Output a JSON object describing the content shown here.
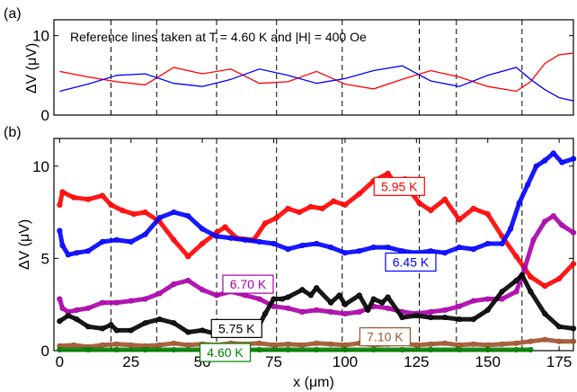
{
  "chart_data": [
    {
      "panel_label": "(a)",
      "type": "line",
      "ylabel": "ΔV (μV)",
      "annotation": "Reference lines taken at T = 4.60 K and |H| = 400 Oe",
      "xlim": [
        -2,
        180
      ],
      "ylim": [
        0,
        12
      ],
      "yticks": [
        0,
        10
      ],
      "dashed_x": [
        18,
        34,
        55,
        76,
        99,
        126,
        139,
        162
      ],
      "series": [
        {
          "color": "#ff0000",
          "x": [
            0,
            10,
            20,
            30,
            40,
            50,
            60,
            70,
            80,
            90,
            100,
            110,
            120,
            130,
            140,
            150,
            160,
            165,
            170,
            175,
            180
          ],
          "values": [
            5.5,
            4.8,
            4.2,
            3.8,
            6.0,
            5.2,
            5.8,
            4.0,
            4.2,
            5.5,
            3.9,
            3.3,
            4.5,
            5.6,
            4.8,
            3.6,
            3.0,
            4.2,
            6.5,
            7.6,
            7.8
          ]
        },
        {
          "color": "#0000ff",
          "x": [
            0,
            10,
            20,
            30,
            40,
            50,
            60,
            70,
            80,
            90,
            100,
            110,
            120,
            130,
            140,
            150,
            160,
            165,
            170,
            175,
            180
          ],
          "values": [
            3.0,
            3.9,
            5.0,
            5.2,
            4.0,
            3.6,
            4.5,
            5.8,
            5.0,
            4.0,
            4.6,
            5.6,
            6.2,
            4.3,
            3.6,
            5.0,
            6.0,
            4.5,
            3.2,
            2.2,
            1.8
          ]
        }
      ]
    },
    {
      "panel_label": "(b)",
      "type": "scatter",
      "xlabel": "x (μm)",
      "ylabel": "ΔV (μV)",
      "xlim": [
        -2,
        180
      ],
      "ylim": [
        0,
        11.5
      ],
      "xticks": [
        0,
        25,
        50,
        75,
        100,
        125,
        150,
        175
      ],
      "yticks": [
        0,
        5,
        10
      ],
      "dashed_x": [
        18,
        34,
        55,
        76,
        99,
        126,
        139,
        162
      ],
      "series": [
        {
          "name": "5.95 K",
          "color": "#ff0000",
          "x": [
            0,
            1,
            5,
            10,
            15,
            18,
            22,
            26,
            30,
            35,
            40,
            45,
            50,
            55,
            58,
            62,
            68,
            72,
            76,
            80,
            84,
            88,
            92,
            96,
            100,
            105,
            110,
            115,
            118,
            121,
            123,
            126,
            130,
            135,
            140,
            145,
            150,
            155,
            160,
            165,
            170,
            175,
            180
          ],
          "values": [
            7.9,
            8.6,
            8.3,
            8.2,
            8.4,
            7.9,
            7.6,
            7.4,
            7.5,
            7.0,
            6.0,
            5.1,
            5.8,
            6.4,
            6.7,
            6.1,
            6.0,
            6.9,
            7.2,
            7.7,
            7.5,
            7.8,
            7.7,
            8.1,
            7.9,
            8.5,
            9.2,
            9.6,
            9.0,
            9.3,
            8.6,
            8.0,
            7.6,
            8.2,
            7.1,
            7.7,
            7.4,
            6.2,
            5.1,
            4.0,
            3.5,
            3.9,
            4.7
          ]
        },
        {
          "name": "6.45 K",
          "color": "#0000ff",
          "x": [
            0,
            1,
            3,
            6,
            10,
            15,
            20,
            25,
            30,
            35,
            40,
            45,
            50,
            55,
            60,
            65,
            70,
            75,
            80,
            85,
            90,
            95,
            100,
            105,
            110,
            115,
            120,
            125,
            130,
            135,
            140,
            145,
            150,
            155,
            158,
            161,
            164,
            167,
            170,
            173,
            176,
            180
          ],
          "values": [
            6.5,
            5.7,
            5.2,
            5.3,
            5.4,
            5.9,
            6.0,
            5.9,
            6.3,
            7.2,
            7.5,
            7.3,
            6.6,
            6.2,
            6.1,
            6.0,
            5.9,
            5.8,
            5.5,
            5.7,
            5.8,
            5.6,
            5.3,
            5.4,
            5.6,
            5.6,
            5.4,
            5.3,
            5.4,
            5.3,
            5.6,
            5.5,
            5.8,
            5.8,
            6.6,
            8.0,
            9.0,
            10.0,
            10.3,
            10.7,
            10.2,
            10.4
          ]
        },
        {
          "name": "6.70 K",
          "color": "#aa00aa",
          "x": [
            0,
            1,
            3,
            6,
            10,
            15,
            20,
            25,
            30,
            35,
            40,
            45,
            50,
            55,
            60,
            65,
            70,
            75,
            80,
            85,
            90,
            95,
            100,
            105,
            110,
            115,
            120,
            125,
            130,
            135,
            140,
            145,
            150,
            155,
            160,
            163,
            166,
            170,
            173,
            176,
            180
          ],
          "values": [
            2.8,
            2.3,
            2.1,
            2.2,
            2.3,
            2.6,
            2.6,
            2.7,
            2.8,
            3.1,
            3.6,
            3.8,
            3.3,
            3.0,
            3.2,
            3.0,
            2.8,
            2.4,
            2.3,
            2.1,
            2.2,
            2.1,
            2.0,
            2.1,
            2.4,
            2.3,
            2.1,
            2.0,
            2.1,
            2.2,
            2.4,
            2.7,
            2.8,
            2.8,
            3.2,
            4.5,
            6.0,
            7.0,
            7.3,
            6.8,
            6.4
          ]
        },
        {
          "name": "5.75 K",
          "color": "#000000",
          "x": [
            0,
            3,
            6,
            10,
            15,
            18,
            20,
            25,
            30,
            35,
            40,
            45,
            50,
            55,
            60,
            65,
            70,
            72,
            75,
            78,
            80,
            85,
            88,
            90,
            95,
            98,
            100,
            105,
            108,
            110,
            113,
            115,
            120,
            125,
            130,
            135,
            140,
            145,
            150,
            155,
            160,
            162,
            165,
            170,
            175,
            180
          ],
          "values": [
            1.6,
            1.9,
            1.7,
            1.3,
            1.2,
            1.4,
            1.1,
            1.1,
            1.5,
            1.7,
            1.5,
            1.0,
            1.1,
            0.9,
            0.9,
            1.4,
            1.4,
            2.0,
            2.8,
            2.8,
            2.9,
            3.3,
            3.0,
            3.4,
            2.6,
            3.0,
            2.5,
            3.0,
            2.2,
            2.8,
            2.6,
            2.9,
            1.8,
            1.9,
            1.8,
            1.8,
            1.7,
            1.7,
            2.2,
            3.2,
            3.8,
            4.1,
            3.2,
            2.0,
            1.3,
            1.2
          ]
        },
        {
          "name": "7.10 K",
          "color": "#a0522d",
          "x": [
            0,
            5,
            10,
            15,
            20,
            25,
            30,
            35,
            40,
            45,
            50,
            55,
            60,
            65,
            70,
            75,
            80,
            85,
            90,
            95,
            100,
            105,
            110,
            115,
            120,
            125,
            130,
            135,
            140,
            145,
            150,
            155,
            160,
            165,
            170,
            175,
            180
          ],
          "values": [
            0.25,
            0.3,
            0.2,
            0.3,
            0.35,
            0.3,
            0.25,
            0.3,
            0.4,
            0.3,
            0.35,
            0.3,
            0.4,
            0.35,
            0.4,
            0.3,
            0.35,
            0.3,
            0.4,
            0.35,
            0.3,
            0.4,
            0.3,
            0.35,
            0.4,
            0.3,
            0.35,
            0.4,
            0.3,
            0.35,
            0.3,
            0.35,
            0.4,
            0.5,
            0.6,
            0.5,
            0.5
          ]
        },
        {
          "name": "4.60 K",
          "color": "#008000",
          "x": [
            0,
            10,
            20,
            30,
            40,
            50,
            60,
            70,
            80,
            90,
            100,
            110,
            120,
            130,
            140,
            150,
            160,
            165
          ],
          "values": [
            0.05,
            0.05,
            0.05,
            0.05,
            0.05,
            0.05,
            0.05,
            0.05,
            0.05,
            0.05,
            0.05,
            0.05,
            0.05,
            0.05,
            0.05,
            0.05,
            0.05,
            0.05
          ]
        }
      ],
      "annotations": [
        {
          "text": "5.95 K",
          "color": "#ff0000",
          "x": 119,
          "y": 8.9
        },
        {
          "text": "6.45 K",
          "color": "#0000ff",
          "x": 123,
          "y": 4.8
        },
        {
          "text": "6.70 K",
          "color": "#aa00aa",
          "x": 66,
          "y": 3.6
        },
        {
          "text": "5.75 K",
          "color": "#000000",
          "x": 62,
          "y": 1.2
        },
        {
          "text": "7.10 K",
          "color": "#a0522d",
          "x": 114,
          "y": 0.75
        },
        {
          "text": "4.60 K",
          "color": "#008000",
          "x": 58,
          "y": -0.1
        }
      ]
    }
  ]
}
